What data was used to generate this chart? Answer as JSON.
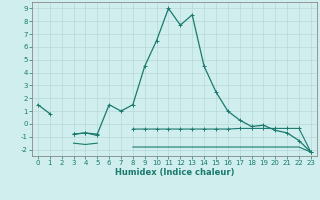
{
  "xlabel": "Humidex (Indice chaleur)",
  "x": [
    0,
    1,
    2,
    3,
    4,
    5,
    6,
    7,
    8,
    9,
    10,
    11,
    12,
    13,
    14,
    15,
    16,
    17,
    18,
    19,
    20,
    21,
    22,
    23
  ],
  "line1_y": [
    1.5,
    0.8,
    null,
    -0.8,
    -0.7,
    -0.8,
    1.5,
    1.0,
    1.5,
    4.5,
    6.5,
    9.0,
    7.7,
    8.5,
    4.5,
    2.5,
    1.0,
    0.3,
    -0.2,
    -0.1,
    -0.5,
    -0.7,
    -1.3,
    -2.2
  ],
  "line2_y": [
    null,
    null,
    null,
    -0.8,
    -0.7,
    -0.9,
    null,
    null,
    -0.4,
    -0.4,
    -0.4,
    -0.4,
    -0.4,
    -0.4,
    -0.4,
    -0.4,
    -0.4,
    -0.35,
    -0.35,
    -0.35,
    -0.35,
    -0.35,
    -0.35,
    -2.2
  ],
  "line3_y": [
    null,
    null,
    null,
    -1.5,
    -1.6,
    -1.5,
    null,
    null,
    -1.8,
    -1.8,
    -1.8,
    -1.8,
    -1.8,
    -1.8,
    -1.8,
    -1.8,
    -1.8,
    -1.8,
    -1.8,
    -1.8,
    -1.8,
    -1.8,
    -1.8,
    -2.2
  ],
  "ylim": [
    -2.5,
    9.5
  ],
  "yticks": [
    -2,
    -1,
    0,
    1,
    2,
    3,
    4,
    5,
    6,
    7,
    8,
    9
  ],
  "xticks": [
    0,
    1,
    2,
    3,
    4,
    5,
    6,
    7,
    8,
    9,
    10,
    11,
    12,
    13,
    14,
    15,
    16,
    17,
    18,
    19,
    20,
    21,
    22,
    23
  ],
  "line_color": "#1a7a6e",
  "bg_color": "#d0eeee",
  "grid_color": "#b8d8d8",
  "fig_bg": "#d0eeee"
}
